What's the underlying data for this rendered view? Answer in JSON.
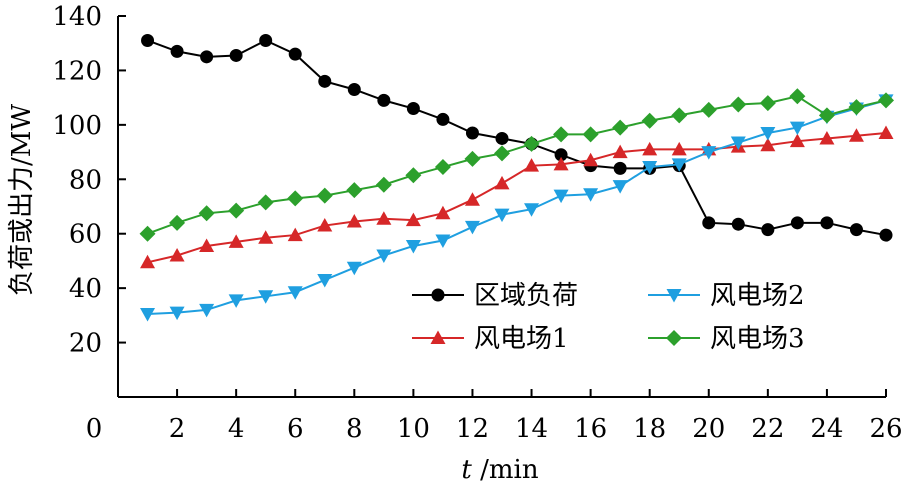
{
  "chart_data": {
    "type": "line",
    "title": "",
    "xlabel_var": "t",
    "xlabel_unit": " /min",
    "ylabel": "负荷或出力/MW",
    "xlim": [
      0,
      26
    ],
    "ylim": [
      0,
      140
    ],
    "xticks": [
      0,
      2,
      4,
      6,
      8,
      10,
      12,
      14,
      16,
      18,
      20,
      22,
      24,
      26
    ],
    "yticks": [
      20,
      40,
      60,
      80,
      100,
      120,
      140
    ],
    "grid": false,
    "legend_position": "lower-center",
    "x": [
      1,
      2,
      3,
      4,
      5,
      6,
      7,
      8,
      9,
      10,
      11,
      12,
      13,
      14,
      15,
      16,
      17,
      18,
      19,
      20,
      21,
      22,
      23,
      24,
      25,
      26
    ],
    "series": [
      {
        "name": "区域负荷",
        "color": "#000000",
        "marker": "circle",
        "values": [
          131,
          127,
          125,
          125.5,
          131,
          126,
          116,
          113,
          109,
          106,
          102,
          97,
          95,
          93,
          89,
          85,
          84,
          84,
          85,
          64,
          63.5,
          61.5,
          64,
          64,
          61.5,
          59.5
        ]
      },
      {
        "name": "风电场1",
        "color": "#d62728",
        "marker": "triangle-up",
        "values": [
          49.5,
          52,
          55.5,
          57,
          58.5,
          59.5,
          63,
          64.5,
          65.5,
          65,
          67.5,
          72.5,
          78.5,
          85,
          85.5,
          87,
          90,
          91,
          91,
          91,
          92,
          92.5,
          94,
          95,
          96,
          97
        ]
      },
      {
        "name": "风电场2",
        "color": "#1f9fe0",
        "marker": "triangle-down",
        "values": [
          30.5,
          31,
          32,
          35.5,
          37,
          38.5,
          43,
          47.5,
          52,
          55.5,
          57.5,
          62.5,
          67,
          69,
          74,
          74.5,
          77.5,
          84.5,
          85.5,
          90,
          93.5,
          97,
          99,
          103,
          106,
          109
        ]
      },
      {
        "name": "风电场3",
        "color": "#2ca02c",
        "marker": "diamond",
        "values": [
          60,
          64,
          67.5,
          68.5,
          71.5,
          73,
          74,
          76,
          78,
          81.5,
          84.5,
          87.5,
          89.5,
          93,
          96.5,
          96.5,
          99,
          101.5,
          103.5,
          105.5,
          107.5,
          108,
          110.5,
          103.5,
          106.5,
          109
        ]
      }
    ]
  }
}
